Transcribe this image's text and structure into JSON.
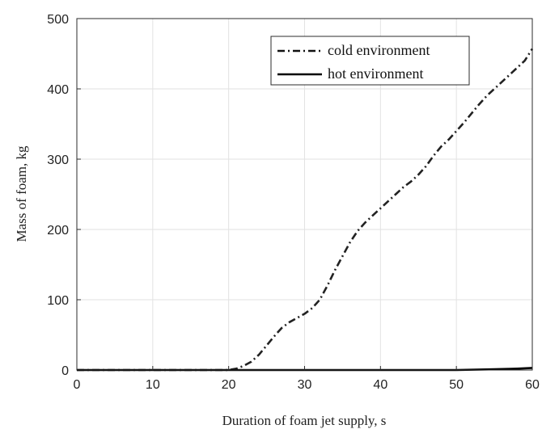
{
  "chart_data": {
    "type": "line",
    "title": "",
    "xlabel": "Duration of foam jet supply, s",
    "ylabel": "Mass of foam, kg",
    "xlim": [
      0,
      60
    ],
    "ylim": [
      0,
      500
    ],
    "x_ticks": [
      0,
      10,
      20,
      30,
      40,
      50,
      60
    ],
    "y_ticks": [
      0,
      100,
      200,
      300,
      400,
      500
    ],
    "grid": true,
    "legend_position": "top-right",
    "series": [
      {
        "name": "cold environment",
        "line_style": "dash-dot",
        "color": "#222222",
        "x": [
          0,
          20,
          21,
          22,
          23,
          24,
          25,
          26,
          27,
          28,
          29,
          30,
          31,
          32,
          33,
          34,
          35,
          36,
          37,
          38,
          39,
          40,
          41,
          42,
          43,
          44,
          45,
          46,
          47,
          48,
          49,
          50,
          51,
          52,
          53,
          54,
          55,
          56,
          57,
          58,
          59,
          60
        ],
        "y": [
          0,
          0,
          2,
          6,
          12,
          22,
          35,
          48,
          60,
          68,
          74,
          80,
          88,
          100,
          120,
          142,
          162,
          182,
          198,
          210,
          220,
          230,
          240,
          250,
          260,
          268,
          278,
          290,
          305,
          318,
          328,
          340,
          352,
          365,
          378,
          390,
          400,
          410,
          420,
          430,
          440,
          457
        ]
      },
      {
        "name": "hot environment",
        "line_style": "solid",
        "color": "#000000",
        "x": [
          0,
          10,
          20,
          30,
          40,
          50,
          55,
          58,
          60
        ],
        "y": [
          0,
          0,
          0,
          0,
          0,
          0,
          1,
          2,
          3
        ]
      }
    ]
  }
}
